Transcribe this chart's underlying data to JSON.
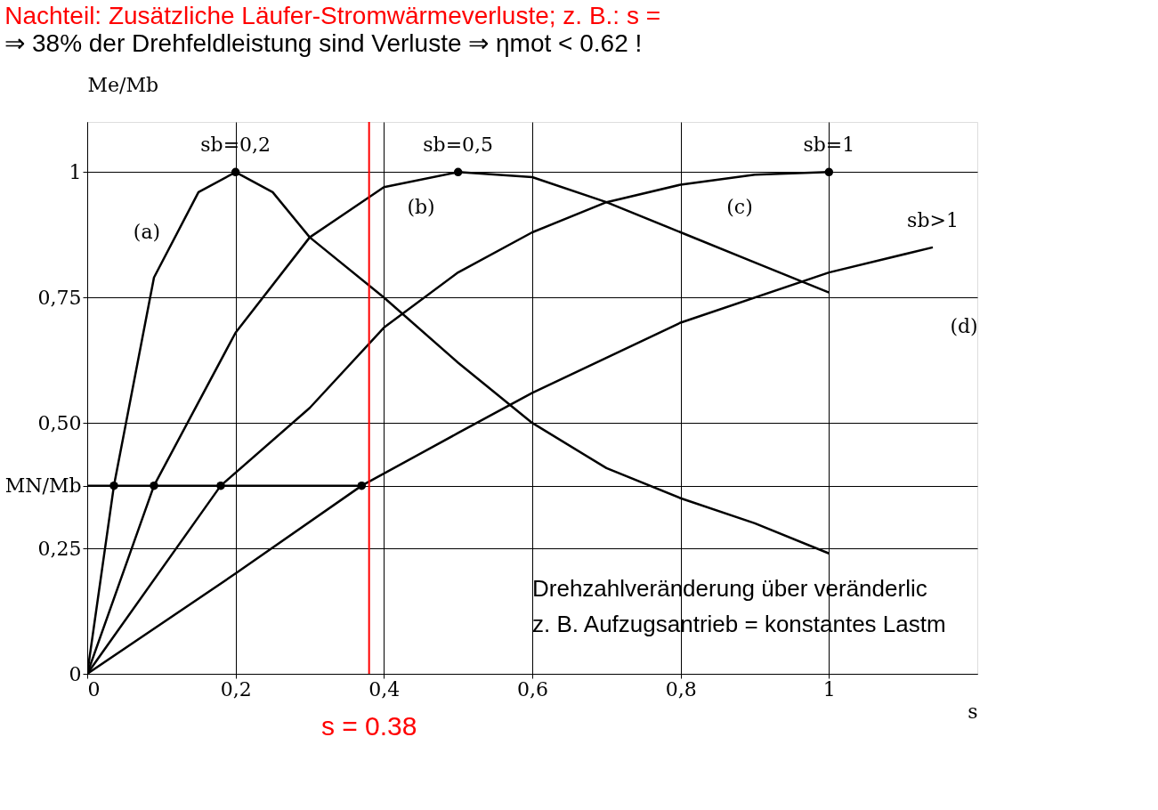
{
  "chart_data": {
    "type": "line",
    "title": "Nachteil: Zusätzliche Läufer-Stromwärmeverluste; z. B.: s =",
    "subtitle": "⇒ 38% der Drehfeldleistung sind Verluste ⇒ ηmot < 0.62 !",
    "xlabel": "s",
    "ylabel": "Me/Mb",
    "xlim": [
      0,
      1.2
    ],
    "ylim": [
      0,
      1.1
    ],
    "xticks": [
      0,
      {
        "value": 0.2,
        "label": "0,2"
      },
      {
        "value": 0.4,
        "label": "0,4"
      },
      {
        "value": 0.6,
        "label": "0,6"
      },
      {
        "value": 0.8,
        "label": "0,8"
      },
      1
    ],
    "yticks": [
      0,
      {
        "value": 0.25,
        "label": "0,25"
      },
      {
        "value": 0.375,
        "label": "MN/Mb"
      },
      {
        "value": 0.5,
        "label": "0,50"
      },
      {
        "value": 0.75,
        "label": "0,75"
      },
      1
    ],
    "grid": true,
    "marker": "none",
    "line_style": "solid",
    "series": [
      {
        "color": "#000000",
        "x": [
          0,
          0.036,
          0.09,
          0.15,
          0.2,
          0.25,
          0.3,
          0.4,
          0.5,
          0.6,
          0.7,
          0.8,
          0.9,
          1.0
        ],
        "values": [
          0,
          0.375,
          0.79,
          0.96,
          1,
          0.96,
          0.87,
          0.75,
          0.62,
          0.5,
          0.41,
          0.35,
          0.3,
          0.24
        ]
      },
      {
        "color": "#000000",
        "x": [
          0,
          0.09,
          0.2,
          0.3,
          0.4,
          0.5,
          0.6,
          0.7,
          0.8,
          0.9,
          1.0
        ],
        "values": [
          0,
          0.375,
          0.68,
          0.87,
          0.97,
          1,
          0.99,
          0.94,
          0.88,
          0.82,
          0.76
        ]
      },
      {
        "color": "#000000",
        "x": [
          0,
          0.18,
          0.3,
          0.4,
          0.5,
          0.6,
          0.7,
          0.8,
          0.9,
          1.0
        ],
        "values": [
          0,
          0.375,
          0.53,
          0.69,
          0.8,
          0.88,
          0.94,
          0.975,
          0.995,
          1
        ]
      },
      {
        "color": "#000000",
        "x": [
          0,
          0.2,
          0.37,
          0.5,
          0.6,
          0.8,
          1.0,
          1.14
        ],
        "values": [
          0,
          0.2,
          0.375,
          0.48,
          0.56,
          0.7,
          0.8,
          0.85
        ]
      },
      {
        "color": "#000000",
        "x": [
          0,
          0.37
        ],
        "values": [
          0.375,
          0.375
        ]
      },
      {
        "type": "scatter",
        "color": "#000000",
        "marker": "circle",
        "x": [
          0.036,
          0.09,
          0.18,
          0.37,
          0.2,
          0.5,
          1.0
        ],
        "values": [
          0.375,
          0.375,
          0.375,
          0.375,
          1,
          1,
          1
        ]
      }
    ],
    "ref_lines": [
      {
        "axis": "x",
        "value": 0.38,
        "label": "s = 0.38",
        "color": "#ff0000"
      }
    ],
    "annotations": [
      {
        "text": "sb=0,2",
        "x": 0.2,
        "y": 1
      },
      {
        "text": "sb=0,5",
        "x": 0.5,
        "y": 1
      },
      {
        "text": "sb=1",
        "x": 1.0,
        "y": 1
      },
      {
        "text": "sb>1",
        "x": 1.14,
        "y": 0.85
      },
      "(a)",
      "(b)",
      "(c)",
      "(d)",
      "Drehzahlveränderung über veränderlic",
      "z. B. Aufzugsantrieb = konstantes Lastm"
    ]
  }
}
